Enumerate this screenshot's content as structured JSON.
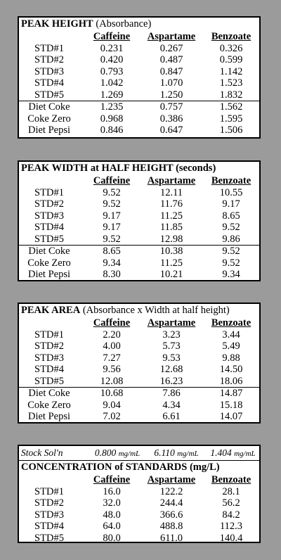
{
  "peak_height": {
    "title_bold": "PEAK HEIGHT",
    "title_unit": "(Absorbance)",
    "headers": [
      "Caffeine",
      "Aspartame",
      "Benzoate"
    ],
    "rows": [
      {
        "label": "STD#1",
        "v": [
          "0.231",
          "0.267",
          "0.326"
        ]
      },
      {
        "label": "STD#2",
        "v": [
          "0.420",
          "0.487",
          "0.599"
        ]
      },
      {
        "label": "STD#3",
        "v": [
          "0.793",
          "0.847",
          "1.142"
        ]
      },
      {
        "label": "STD#4",
        "v": [
          "1.042",
          "1.070",
          "1.523"
        ]
      },
      {
        "label": "STD#5",
        "v": [
          "1.269",
          "1.250",
          "1.832"
        ]
      },
      {
        "label": "Diet Coke",
        "v": [
          "1.235",
          "0.757",
          "1.562"
        ]
      },
      {
        "label": "Coke Zero",
        "v": [
          "0.968",
          "0.386",
          "1.595"
        ]
      },
      {
        "label": "Diet Pepsi",
        "v": [
          "0.846",
          "0.647",
          "1.506"
        ]
      }
    ]
  },
  "peak_width": {
    "title_bold": "PEAK WIDTH at HALF HEIGHT (seconds)",
    "headers": [
      "Caffeine",
      "Aspartame",
      "Benzoate"
    ],
    "rows": [
      {
        "label": "STD#1",
        "v": [
          "9.52",
          "12.11",
          "10.55"
        ]
      },
      {
        "label": "STD#2",
        "v": [
          "9.52",
          "11.76",
          "9.17"
        ]
      },
      {
        "label": "STD#3",
        "v": [
          "9.17",
          "11.25",
          "8.65"
        ]
      },
      {
        "label": "STD#4",
        "v": [
          "9.17",
          "11.85",
          "9.52"
        ]
      },
      {
        "label": "STD#5",
        "v": [
          "9.52",
          "12.98",
          "9.86"
        ]
      },
      {
        "label": "Diet Coke",
        "v": [
          "8.65",
          "10.38",
          "9.52"
        ]
      },
      {
        "label": "Coke Zero",
        "v": [
          "9.34",
          "11.25",
          "9.52"
        ]
      },
      {
        "label": "Diet Pepsi",
        "v": [
          "8.30",
          "10.21",
          "9.34"
        ]
      }
    ]
  },
  "peak_area": {
    "title_bold": "PEAK AREA",
    "title_unit": "(Absorbance x Width at half height)",
    "headers": [
      "Caffeine",
      "Aspartame",
      "Benzoate"
    ],
    "rows": [
      {
        "label": "STD#1",
        "v": [
          "2.20",
          "3.23",
          "3.44"
        ]
      },
      {
        "label": "STD#2",
        "v": [
          "4.00",
          "5.73",
          "5.49"
        ]
      },
      {
        "label": "STD#3",
        "v": [
          "7.27",
          "9.53",
          "9.88"
        ]
      },
      {
        "label": "STD#4",
        "v": [
          "9.56",
          "12.68",
          "14.50"
        ]
      },
      {
        "label": "STD#5",
        "v": [
          "12.08",
          "16.23",
          "18.06"
        ]
      },
      {
        "label": "Diet Coke",
        "v": [
          "10.68",
          "7.86",
          "14.87"
        ]
      },
      {
        "label": "Coke Zero",
        "v": [
          "9.04",
          "4.34",
          "15.18"
        ]
      },
      {
        "label": "Diet Pepsi",
        "v": [
          "7.02",
          "6.61",
          "14.07"
        ]
      }
    ]
  },
  "standards": {
    "stock_label": "Stock Sol'n",
    "stock": [
      {
        "value": "0.800",
        "unit": "mg/mL"
      },
      {
        "value": "6.110",
        "unit": "mg/mL"
      },
      {
        "value": "1.404",
        "unit": "mg/mL"
      }
    ],
    "title_bold": "CONCENTRATION of STANDARDS (mg/L)",
    "headers": [
      "Caffeine",
      "Aspartame",
      "Benzoate"
    ],
    "rows": [
      {
        "label": "STD#1",
        "v": [
          "16.0",
          "122.2",
          "28.1"
        ]
      },
      {
        "label": "STD#2",
        "v": [
          "32.0",
          "244.4",
          "56.2"
        ]
      },
      {
        "label": "STD#3",
        "v": [
          "48.0",
          "366.6",
          "84.2"
        ]
      },
      {
        "label": "STD#4",
        "v": [
          "64.0",
          "488.8",
          "112.3"
        ]
      },
      {
        "label": "STD#5",
        "v": [
          "80.0",
          "611.0",
          "140.4"
        ]
      }
    ]
  }
}
